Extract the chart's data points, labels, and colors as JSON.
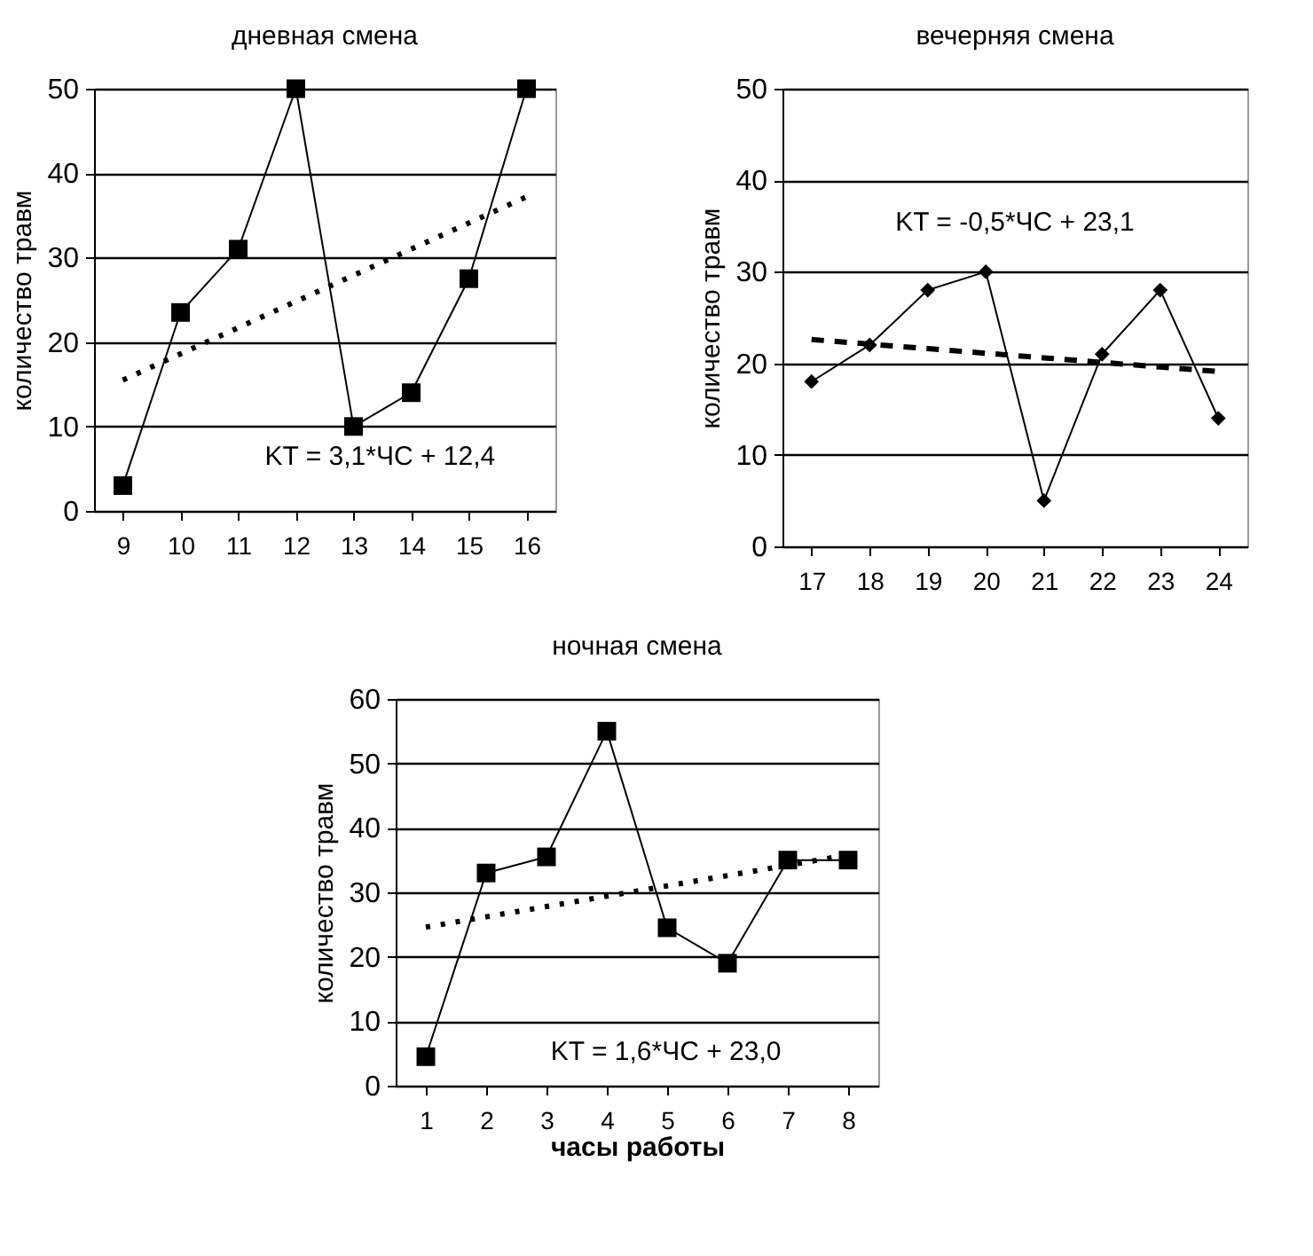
{
  "chart_data": [
    {
      "type": "line",
      "title": "дневная смена",
      "ylabel": "количество травм",
      "categories": [
        "9",
        "10",
        "11",
        "12",
        "13",
        "14",
        "15",
        "16"
      ],
      "ylim": [
        0,
        50
      ],
      "yticks": [
        0,
        10,
        20,
        30,
        40,
        50
      ],
      "grid": "y",
      "annotations": [
        "KT = 3,1*ЧС + 12,4"
      ],
      "series": [
        {
          "color": "#000000",
          "marker": "square",
          "line_style": "solid",
          "values": [
            3,
            23.5,
            31,
            50,
            10,
            14,
            27.5,
            50
          ]
        },
        {
          "color": "#000000",
          "marker": "none",
          "line_style": "dotted",
          "values": [
            15.5,
            18.6,
            21.7,
            24.8,
            27.9,
            31,
            34.1,
            37.2
          ]
        }
      ]
    },
    {
      "type": "line",
      "title": "вечерняя смена",
      "ylabel": "количество травм",
      "categories": [
        "17",
        "18",
        "19",
        "20",
        "21",
        "22",
        "23",
        "24"
      ],
      "ylim": [
        0,
        50
      ],
      "yticks": [
        0,
        10,
        20,
        30,
        40,
        50
      ],
      "grid": "y",
      "annotations": [
        "KT = -0,5*ЧС + 23,1"
      ],
      "series": [
        {
          "color": "#000000",
          "marker": "diamond",
          "line_style": "solid",
          "values": [
            18,
            22,
            28,
            30,
            5,
            21,
            28,
            14
          ]
        },
        {
          "color": "#000000",
          "marker": "none",
          "line_style": "dashed",
          "values": [
            22.6,
            22.1,
            21.6,
            21.1,
            20.6,
            20.1,
            19.6,
            19.1
          ]
        }
      ]
    },
    {
      "type": "line",
      "title": "ночная смена",
      "xlabel": "часы работы",
      "ylabel": "количество травм",
      "categories": [
        "1",
        "2",
        "3",
        "4",
        "5",
        "6",
        "7",
        "8"
      ],
      "ylim": [
        0,
        60
      ],
      "yticks": [
        0,
        10,
        20,
        30,
        40,
        50,
        60
      ],
      "grid": "y",
      "annotations": [
        "KT = 1,6*ЧС + 23,0"
      ],
      "series": [
        {
          "color": "#000000",
          "marker": "square",
          "line_style": "solid",
          "values": [
            4.5,
            33,
            35.5,
            55,
            24.5,
            19,
            35,
            35
          ]
        },
        {
          "color": "#000000",
          "marker": "none",
          "line_style": "dotted",
          "values": [
            24.6,
            26.2,
            27.8,
            29.4,
            31,
            32.6,
            34.2,
            35.8
          ]
        }
      ]
    }
  ]
}
